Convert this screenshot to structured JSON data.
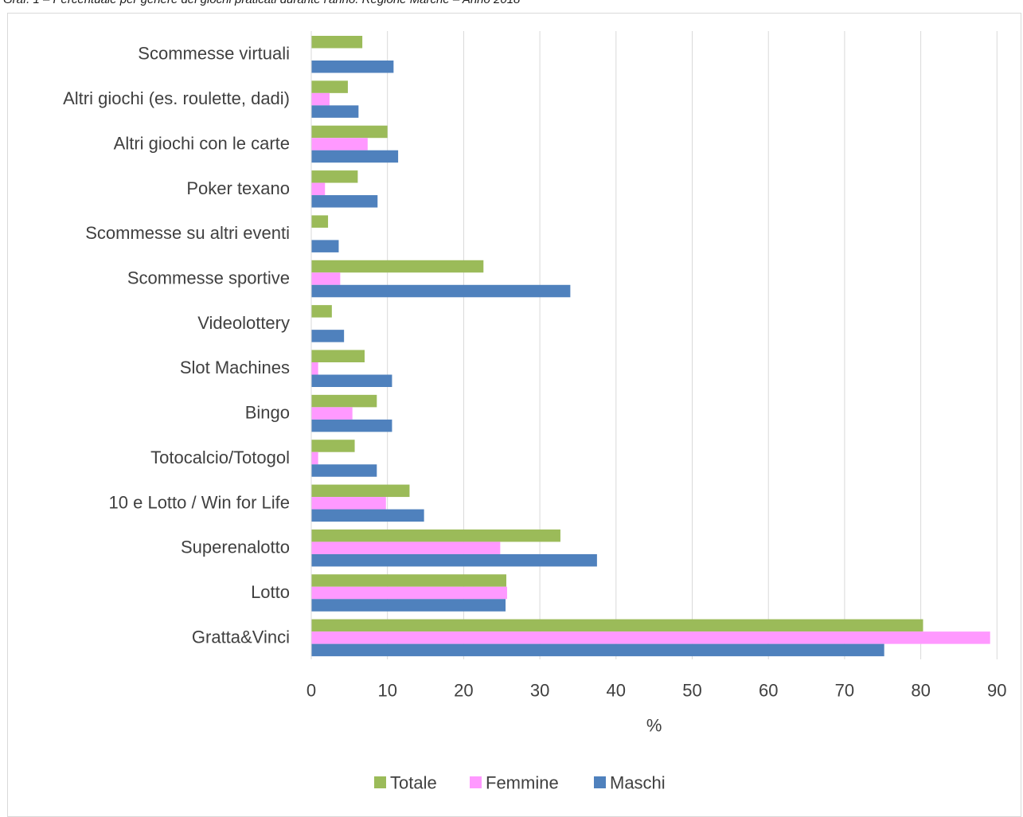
{
  "chart_data": {
    "type": "bar",
    "orientation": "horizontal",
    "title": "Graf. 1 – Percentuale per genere dei giochi praticati durante l'anno. Regione Marche – Anno 2018",
    "xlabel": "%",
    "ylabel": "",
    "xlim": [
      0,
      90
    ],
    "x_ticks": [
      "0",
      "10",
      "20",
      "30",
      "40",
      "50",
      "60",
      "70",
      "80",
      "90"
    ],
    "grid": "vertical",
    "legend_position": "bottom",
    "categories": [
      "Scommesse virtuali",
      "Altri giochi (es. roulette, dadi)",
      "Altri giochi con le carte",
      "Poker texano",
      "Scommesse su altri eventi",
      "Scommesse sportive",
      "Videolottery",
      "Slot Machines",
      "Bingo",
      "Totocalcio/Totogol",
      "10 e Lotto / Win for Life",
      "Superenalotto",
      "Lotto",
      "Gratta&Vinci"
    ],
    "series": [
      {
        "name": "Totale",
        "color": "#9bbb59",
        "values": [
          6.7,
          4.8,
          10.0,
          6.1,
          2.2,
          22.6,
          2.7,
          7.0,
          8.6,
          5.7,
          12.9,
          32.7,
          25.6,
          80.3
        ]
      },
      {
        "name": "Femmine",
        "color": "#ff99ff",
        "values": [
          0,
          2.4,
          7.4,
          1.8,
          0,
          3.8,
          0,
          0.9,
          5.4,
          0.9,
          9.8,
          24.8,
          25.7,
          89.1
        ]
      },
      {
        "name": "Maschi",
        "color": "#4f81bd",
        "values": [
          10.8,
          6.2,
          11.4,
          8.7,
          3.6,
          34.0,
          4.3,
          10.6,
          10.6,
          8.6,
          14.8,
          37.5,
          25.5,
          75.2
        ]
      }
    ]
  }
}
